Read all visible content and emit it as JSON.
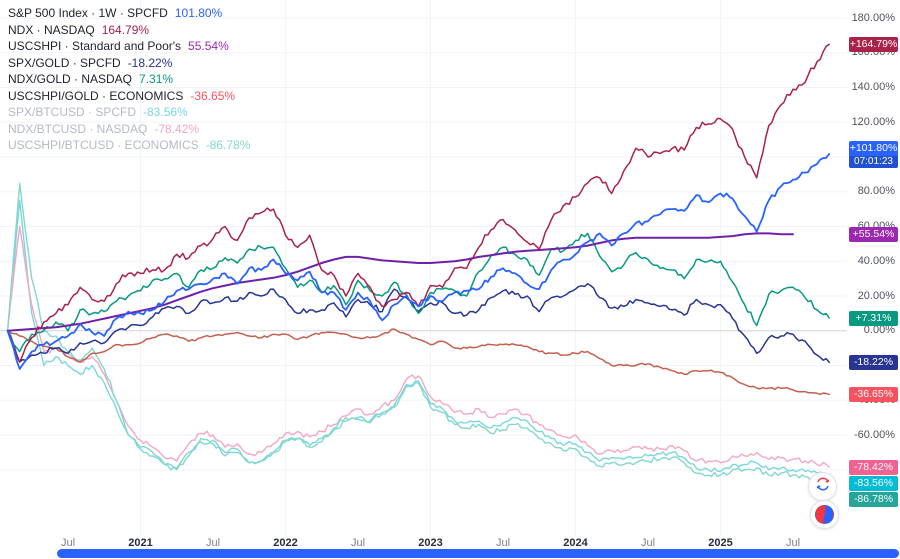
{
  "chart_data": {
    "type": "line",
    "x_start": 2020.0833,
    "x_step_years": 0.0833333,
    "ylim": [
      -95,
      185
    ],
    "grid": "horizontal-light",
    "legend_position": "top-left",
    "y_axis_ticks": [
      {
        "v": 180,
        "label": "180.00%"
      },
      {
        "v": 160,
        "label": "160.00%"
      },
      {
        "v": 140,
        "label": "140.00%"
      },
      {
        "v": 120,
        "label": "120.00%"
      },
      {
        "v": 100,
        "label": "100.00%"
      },
      {
        "v": 80,
        "label": "80.00%"
      },
      {
        "v": 60,
        "label": "60.00%"
      },
      {
        "v": 40,
        "label": "40.00%"
      },
      {
        "v": 20,
        "label": "20.00%"
      },
      {
        "v": 0,
        "label": "0.00%"
      },
      {
        "v": -20,
        "label": "-20.00%"
      },
      {
        "v": -40,
        "label": "-40.00%"
      },
      {
        "v": -60,
        "label": "-60.00%"
      },
      {
        "v": -80,
        "label": "-80.00%"
      }
    ],
    "x_axis_ticks": [
      {
        "t": 2020.5,
        "label": "Jul",
        "major": false
      },
      {
        "t": 2021.0,
        "label": "2021",
        "major": true
      },
      {
        "t": 2021.5,
        "label": "Jul",
        "major": false
      },
      {
        "t": 2022.0,
        "label": "2022",
        "major": true
      },
      {
        "t": 2022.5,
        "label": "Jul",
        "major": false
      },
      {
        "t": 2023.0,
        "label": "2023",
        "major": true
      },
      {
        "t": 2023.5,
        "label": "Jul",
        "major": false
      },
      {
        "t": 2024.0,
        "label": "2024",
        "major": true
      },
      {
        "t": 2024.5,
        "label": "Jul",
        "major": false
      },
      {
        "t": 2025.0,
        "label": "2025",
        "major": true
      },
      {
        "t": 2025.5,
        "label": "Jul",
        "major": false
      }
    ],
    "series": [
      {
        "id": "spx",
        "legend_title": "S&P 500 Index · 1W · SPCFD",
        "legend_value": "101.80%",
        "legend_value_color": "#2962FF",
        "dim": false,
        "color": "#2962FF",
        "width": 1.8,
        "z": 9,
        "jitter": 1.6,
        "badge_label": "+101.80%",
        "badge_color": "#2962FF",
        "badge_sub": "07:01:23",
        "values": [
          0,
          -22,
          -12,
          -8,
          -6,
          -3,
          4,
          -1,
          -3,
          7,
          11,
          10,
          12,
          17,
          23,
          24,
          27,
          30,
          33,
          27,
          36,
          35,
          41,
          33,
          29,
          34,
          22,
          22,
          12,
          22,
          17,
          6,
          15,
          20,
          14,
          20,
          17,
          22,
          23,
          24,
          31,
          36,
          33,
          27,
          24,
          35,
          41,
          44,
          51,
          56,
          49,
          56,
          62,
          63,
          67,
          70,
          69,
          78,
          74,
          79,
          76,
          66,
          57,
          75,
          83,
          87,
          91,
          96,
          101.8
        ]
      },
      {
        "id": "ndx",
        "legend_title": "NDX · NASDAQ",
        "legend_value": "164.79%",
        "legend_value_color": "#A8224A",
        "dim": false,
        "color": "#A8224A",
        "width": 1.5,
        "z": 8,
        "jitter": 2.2,
        "badge_label": "+164.79%",
        "badge_color": "#A8224A",
        "badge_sub": null,
        "values": [
          0,
          -18,
          -4,
          5,
          10,
          15,
          25,
          18,
          17,
          27,
          33,
          33,
          35,
          35,
          44,
          42,
          49,
          53,
          60,
          52,
          65,
          68,
          70,
          55,
          48,
          55,
          35,
          32,
          20,
          33,
          25,
          14,
          18,
          22,
          14,
          26,
          25,
          36,
          36,
          48,
          58,
          64,
          58,
          51,
          47,
          64,
          72,
          77,
          85,
          88,
          79,
          92,
          105,
          100,
          102,
          105,
          104,
          117,
          119,
          122,
          116,
          100,
          88,
          118,
          130,
          139,
          143,
          155,
          164.79
        ]
      },
      {
        "id": "uscshpi",
        "legend_title": "USCSHPI · Standard and Poor's",
        "legend_value": "55.54%",
        "legend_value_color": "#9C27B0",
        "dim": false,
        "color": "#6E21A8",
        "width": 2,
        "z": 7,
        "jitter": 0,
        "badge_label": "+55.54%",
        "badge_color": "#9C27B0",
        "badge_sub": null,
        "values": [
          0,
          0.5,
          1,
          1.5,
          2,
          3,
          4,
          5.5,
          7,
          8.5,
          10,
          11.5,
          13,
          15,
          17.5,
          20,
          22.5,
          24.5,
          26,
          27.5,
          28.5,
          29.5,
          30.5,
          32,
          34,
          36.5,
          39,
          41,
          42.5,
          42.5,
          41.5,
          40.5,
          40,
          39.5,
          39,
          39,
          39.5,
          40,
          41,
          42.5,
          43.5,
          44.5,
          45.5,
          46,
          46.5,
          47,
          47.5,
          48,
          49,
          50.5,
          52,
          53,
          53.5,
          53.5,
          53.5,
          53.5,
          53.5,
          53.5,
          53.5,
          54,
          54.5,
          55.5,
          56,
          56,
          55.5,
          55.54,
          null,
          null,
          null
        ]
      },
      {
        "id": "spx_gold",
        "legend_title": "SPX/GOLD · SPCFD",
        "legend_value": "-18.22%",
        "legend_value_color": "#283593",
        "dim": false,
        "color": "#283593",
        "width": 1.5,
        "z": 5,
        "jitter": 1.8,
        "badge_label": "-18.22%",
        "badge_color": "#283593",
        "badge_sub": null,
        "values": [
          0,
          -18,
          -14,
          -13,
          -10,
          -13,
          -7,
          -6,
          -7,
          0,
          2,
          3,
          8,
          13,
          14,
          10,
          17,
          16,
          19,
          17,
          22,
          20,
          24,
          18,
          10,
          12,
          12,
          16,
          8,
          18,
          15,
          11,
          24,
          19,
          11,
          16,
          16,
          10,
          9,
          12,
          19,
          23,
          21,
          20,
          11,
          19,
          20,
          24,
          27,
          19,
          13,
          14,
          18,
          16,
          14,
          12,
          9,
          18,
          15,
          15,
          7,
          -3,
          -13,
          -4,
          -3,
          -2,
          -6,
          -14,
          -18.22
        ]
      },
      {
        "id": "ndx_gold",
        "legend_title": "NDX/GOLD · NASDAQ",
        "legend_value": "7.31%",
        "legend_value_color": "#089981",
        "dim": false,
        "color": "#089981",
        "width": 1.5,
        "z": 6,
        "jitter": 2.0,
        "badge_label": "+7.31%",
        "badge_color": "#089981",
        "badge_sub": null,
        "values": [
          0,
          -12,
          -2,
          0,
          5,
          0,
          12,
          10,
          11,
          17,
          20,
          23,
          29,
          30,
          33,
          25,
          35,
          36,
          42,
          39,
          47,
          48,
          48,
          36,
          25,
          29,
          22,
          26,
          15,
          29,
          23,
          20,
          28,
          21,
          10,
          22,
          24,
          23,
          20,
          34,
          43,
          48,
          44,
          41,
          32,
          47,
          46,
          52,
          56,
          43,
          34,
          38,
          45,
          41,
          36,
          35,
          30,
          41,
          40,
          40,
          28,
          15,
          3,
          21,
          23,
          25,
          19,
          12,
          7.31
        ]
      },
      {
        "id": "uscshpi_gold",
        "legend_title": "USCSHPI/GOLD · ECONOMICS",
        "legend_value": "-36.65%",
        "legend_value_color": "#F7525F",
        "dim": false,
        "color": "#C4604F",
        "width": 1.5,
        "z": 4,
        "jitter": 0.8,
        "badge_label": "-36.65%",
        "badge_color": "#F7525F",
        "badge_sub": null,
        "values": [
          0,
          -3,
          -6,
          -9,
          -10,
          -15,
          -18,
          -13,
          -12,
          -8,
          -8,
          -7,
          -4,
          -2,
          -3,
          -6,
          -4,
          -3,
          -2,
          -1,
          -3,
          -4,
          -2,
          -2,
          -5,
          -3,
          -1,
          -1,
          -2,
          -4,
          -4,
          -2,
          1,
          -2,
          -5,
          -8,
          -6,
          -10,
          -10,
          -9,
          -8,
          -8,
          -8,
          -9,
          -12,
          -13,
          -14,
          -13,
          -12,
          -16,
          -20,
          -20,
          -20,
          -19,
          -21,
          -23,
          -25,
          -23,
          -23,
          -24,
          -27,
          -31,
          -33,
          -33,
          -33,
          -34,
          -35,
          -36,
          -36.65
        ]
      },
      {
        "id": "spx_btc",
        "legend_title": "SPX/BTCUSD · SPCFD",
        "legend_value": "-83.56%",
        "legend_value_color": "#7AD7DE",
        "dim": true,
        "color": "#7AD7DE",
        "width": 1.4,
        "z": 1,
        "jitter": 1.8,
        "badge_label": "-83.56%",
        "badge_color": "#00BCD4",
        "badge_sub": null,
        "values": [
          0,
          75,
          10,
          -20,
          -15,
          -20,
          -25,
          -20,
          -30,
          -45,
          -60,
          -68,
          -72,
          -77,
          -79,
          -70,
          -64,
          -65,
          -72,
          -70,
          -76,
          -75,
          -70,
          -63,
          -62,
          -66,
          -62,
          -57,
          -52,
          -50,
          -52,
          -47,
          -43,
          -31,
          -29,
          -42,
          -45,
          -52,
          -53,
          -52,
          -56,
          -53,
          -50,
          -52,
          -58,
          -62,
          -66,
          -65,
          -70,
          -75,
          -73,
          -74,
          -73,
          -72,
          -71,
          -70,
          -73,
          -79,
          -80,
          -81,
          -77,
          -77,
          -76,
          -80,
          -79,
          -80,
          -81,
          -82,
          -83.56
        ]
      },
      {
        "id": "ndx_btc",
        "legend_title": "NDX/BTCUSD · NASDAQ",
        "legend_value": "-78.42%",
        "legend_value_color": "#F3A7C3",
        "dim": true,
        "color": "#F3A7C3",
        "width": 1.4,
        "z": 2,
        "jitter": 1.8,
        "badge_label": "-78.42%",
        "badge_color": "#F06292",
        "badge_sub": null,
        "values": [
          0,
          60,
          15,
          -12,
          -10,
          -13,
          -18,
          -15,
          -25,
          -40,
          -55,
          -63,
          -67,
          -73,
          -75,
          -65,
          -59,
          -60,
          -67,
          -65,
          -71,
          -70,
          -65,
          -59,
          -58,
          -61,
          -58,
          -54,
          -49,
          -45,
          -48,
          -43,
          -40,
          -28,
          -26,
          -38,
          -42,
          -47,
          -48,
          -45,
          -50,
          -48,
          -45,
          -48,
          -54,
          -57,
          -61,
          -60,
          -66,
          -71,
          -69,
          -69,
          -67,
          -68,
          -68,
          -66,
          -69,
          -75,
          -75,
          -76,
          -72,
          -72,
          -70,
          -74,
          -73,
          -74,
          -75,
          -77,
          -78.42
        ]
      },
      {
        "id": "uscshpi_btc",
        "legend_title": "USCSHPI/BTCUSD · ECONOMICS",
        "legend_value": "-86.78%",
        "legend_value_color": "#84D7CB",
        "dim": true,
        "color": "#84D7CB",
        "width": 1.4,
        "z": 3,
        "jitter": 1.8,
        "badge_label": "-86.78%",
        "badge_color": "#26A69A",
        "badge_sub": null,
        "values": [
          0,
          85,
          30,
          0,
          -3,
          -12,
          -17,
          -10,
          -22,
          -40,
          -60,
          -67,
          -70,
          -77,
          -80,
          -72,
          -62,
          -63,
          -70,
          -68,
          -76,
          -75,
          -70,
          -64,
          -62,
          -67,
          -64,
          -56,
          -50,
          -51,
          -53,
          -48,
          -44,
          -32,
          -30,
          -44,
          -47,
          -54,
          -56,
          -54,
          -59,
          -57,
          -54,
          -56,
          -62,
          -65,
          -69,
          -68,
          -73,
          -78,
          -76,
          -77,
          -76,
          -75,
          -74,
          -73,
          -76,
          -82,
          -83,
          -83,
          -80,
          -80,
          -79,
          -83,
          -82,
          -83,
          -84,
          -85.5,
          -86.78
        ]
      }
    ]
  },
  "ui": {
    "scrollbar_color": "#2962FF",
    "zero_line_color": "#D1D4DC",
    "grid_color": "#F2F3F7"
  }
}
